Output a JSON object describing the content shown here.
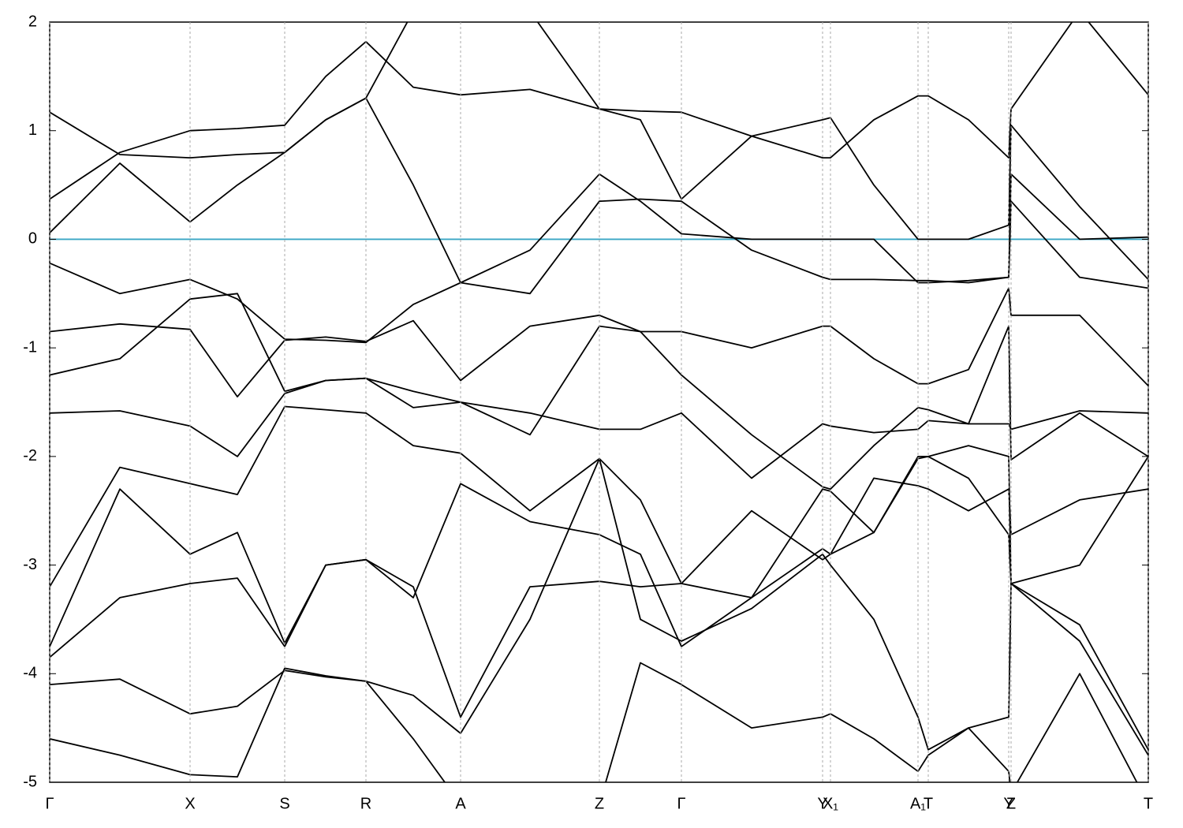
{
  "chart_data": {
    "type": "line",
    "x": [
      0,
      0.89,
      1.78,
      2.38,
      2.98,
      3.5,
      4.01,
      4.61,
      5.21,
      6.09,
      6.97,
      7.49,
      8.01,
      8.9,
      9.8,
      9.9,
      10.45,
      11.01,
      11.14,
      11.65,
      12.16,
      12.19,
      13.06,
      13.93
    ],
    "xlim": [
      0,
      13.93
    ],
    "ylim": [
      -5,
      2
    ],
    "yticks": [
      -5,
      -4,
      -3,
      -2,
      -1,
      0,
      1,
      2
    ],
    "xticks": [
      {
        "value": 0,
        "label": "Γ"
      },
      {
        "value": 1.78,
        "label": "X"
      },
      {
        "value": 2.98,
        "label": "S"
      },
      {
        "value": 4.01,
        "label": "R"
      },
      {
        "value": 5.21,
        "label": "A"
      },
      {
        "value": 6.97,
        "label": "Z"
      },
      {
        "value": 8.01,
        "label": "Γ"
      },
      {
        "value": 9.8,
        "label": "Y"
      },
      {
        "value": 9.9,
        "label": "X₁"
      },
      {
        "value": 11.01,
        "label": "A₁"
      },
      {
        "value": 11.14,
        "label": "T"
      },
      {
        "value": 12.16,
        "label": "Y"
      },
      {
        "value": 12.19,
        "label": "Z"
      },
      {
        "value": 13.93,
        "label": "T"
      }
    ],
    "grid": "x",
    "hlines": [
      {
        "value": 0,
        "color": "#3aa6c4"
      }
    ],
    "series": [
      {
        "color": "#000000",
        "values": [
          1.17,
          0.78,
          0.75,
          0.78,
          0.8,
          1.1,
          1.3,
          2.1,
          2.1,
          2.1,
          1.2,
          1.18,
          1.17,
          0.95,
          0.75,
          0.75,
          1.1,
          1.32,
          1.32,
          1.1,
          0.75,
          1.2,
          2.1,
          1.33
        ]
      },
      {
        "color": "#000000",
        "values": [
          0.37,
          0.8,
          1.0,
          1.02,
          1.05,
          1.5,
          1.82,
          1.4,
          1.33,
          1.38,
          1.2,
          1.1,
          0.37,
          0.95,
          1.1,
          1.12,
          0.5,
          0.0,
          0.0,
          0.0,
          0.13,
          1.05,
          0.3,
          -0.37
        ]
      },
      {
        "color": "#000000",
        "values": [
          0.06,
          0.7,
          0.16,
          0.5,
          0.8,
          1.1,
          1.3,
          0.5,
          -0.4,
          -0.1,
          0.6,
          0.35,
          0.05,
          0.0,
          0.0,
          0.0,
          0.0,
          -0.4,
          -0.4,
          -0.38,
          -0.35,
          0.6,
          0.0,
          0.02
        ]
      },
      {
        "color": "#000000",
        "values": [
          -0.22,
          -0.5,
          -0.37,
          -0.55,
          -0.92,
          -0.93,
          -0.95,
          -0.6,
          -0.4,
          -0.5,
          0.35,
          0.37,
          0.35,
          -0.1,
          -0.35,
          -0.37,
          -0.37,
          -0.38,
          -0.38,
          -0.4,
          -0.35,
          0.35,
          -0.35,
          -0.45
        ]
      },
      {
        "color": "#000000",
        "values": [
          -0.85,
          -0.78,
          -0.83,
          -1.45,
          -0.93,
          -0.9,
          -0.94,
          -0.75,
          -1.3,
          -0.8,
          -0.7,
          -0.85,
          -0.85,
          -1.0,
          -0.8,
          -0.8,
          -1.1,
          -1.33,
          -1.33,
          -1.2,
          -0.45,
          -0.7,
          -0.7,
          -1.35
        ]
      },
      {
        "color": "#000000",
        "values": [
          -1.25,
          -1.1,
          -0.55,
          -0.5,
          -1.4,
          -1.3,
          -1.28,
          -1.4,
          -1.5,
          -1.6,
          -1.75,
          -1.75,
          -1.6,
          -2.2,
          -1.7,
          -1.72,
          -1.78,
          -1.75,
          -1.67,
          -1.7,
          -1.7,
          -1.75,
          -1.58,
          -1.6
        ]
      },
      {
        "color": "#000000",
        "values": [
          -1.6,
          -1.58,
          -1.72,
          -2.0,
          -1.42,
          -1.3,
          -1.28,
          -1.55,
          -1.5,
          -1.8,
          -0.8,
          -0.85,
          -1.25,
          -1.8,
          -2.28,
          -2.3,
          -1.9,
          -1.55,
          -1.57,
          -1.7,
          -0.8,
          -2.03,
          -1.6,
          -2.0
        ]
      },
      {
        "color": "#000000",
        "values": [
          -3.2,
          -2.1,
          -2.25,
          -2.35,
          -1.54,
          -1.57,
          -1.6,
          -1.9,
          -1.97,
          -2.5,
          -2.02,
          -2.4,
          -3.17,
          -2.5,
          -2.95,
          -2.9,
          -2.2,
          -2.27,
          -2.3,
          -2.5,
          -2.3,
          -2.72,
          -2.4,
          -2.3
        ]
      },
      {
        "color": "#000000",
        "values": [
          -3.75,
          -2.3,
          -2.9,
          -2.7,
          -3.72,
          -3.0,
          -2.95,
          -3.3,
          -2.25,
          -2.6,
          -2.72,
          -2.9,
          -3.75,
          -3.3,
          -2.3,
          -2.32,
          -2.7,
          -2.02,
          -2.0,
          -2.2,
          -2.72,
          -3.17,
          -3.0,
          -2.0
        ]
      },
      {
        "color": "#000000",
        "values": [
          -3.85,
          -3.3,
          -3.17,
          -3.12,
          -3.75,
          -3.0,
          -2.95,
          -3.2,
          -4.4,
          -3.2,
          -3.15,
          -3.2,
          -3.17,
          -3.3,
          -2.85,
          -2.9,
          -2.7,
          -2.0,
          -2.0,
          -1.9,
          -2.0,
          -3.17,
          -3.55,
          -4.7
        ]
      },
      {
        "color": "#000000",
        "values": [
          -4.1,
          -4.05,
          -4.37,
          -4.3,
          -3.97,
          -4.03,
          -4.07,
          -4.2,
          -4.55,
          -3.5,
          -2.02,
          -3.5,
          -3.7,
          -3.4,
          -2.9,
          -3.0,
          -3.5,
          -4.4,
          -4.7,
          -4.5,
          -4.4,
          -3.17,
          -3.7,
          -4.75
        ]
      },
      {
        "color": "#000000",
        "values": [
          -4.6,
          -4.75,
          -4.93,
          -4.95,
          -3.95,
          -4.02,
          -4.07,
          -4.6,
          -5.2,
          -5.3,
          -5.2,
          -3.9,
          -4.1,
          -4.5,
          -4.4,
          -4.37,
          -4.6,
          -4.9,
          -4.75,
          -4.5,
          -4.9,
          -5.1,
          -4.0,
          -5.2
        ]
      }
    ]
  }
}
